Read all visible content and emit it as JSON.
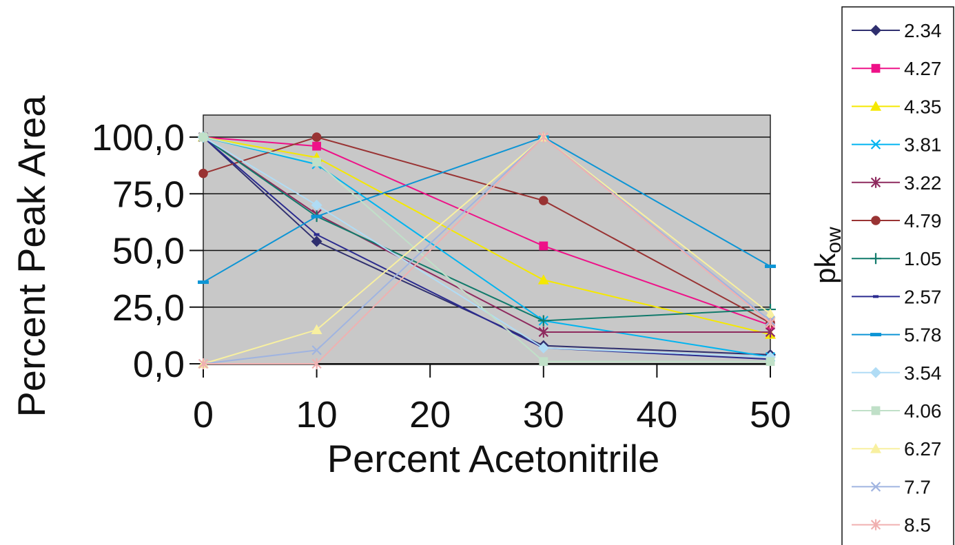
{
  "chart_data": {
    "type": "line",
    "xlabel": "Percent Acetonitrile",
    "ylabel": "Percent Peak Area",
    "legend_title": {
      "main": "pk",
      "sub": "ow"
    },
    "legend_position": "right",
    "grid": "horizontal",
    "plot_background": "#c8c8c8",
    "xlim": [
      0,
      50
    ],
    "ylim": [
      0,
      100
    ],
    "x_ticks": [
      {
        "value": 0,
        "label": "0"
      },
      {
        "value": 10,
        "label": "10"
      },
      {
        "value": 20,
        "label": "20"
      },
      {
        "value": 30,
        "label": "30"
      },
      {
        "value": 40,
        "label": "40"
      },
      {
        "value": 50,
        "label": "50"
      }
    ],
    "y_ticks": [
      {
        "value": 0,
        "label": "0,0"
      },
      {
        "value": 25,
        "label": "25,0"
      },
      {
        "value": 50,
        "label": "50,0"
      },
      {
        "value": 75,
        "label": "75,0"
      },
      {
        "value": 100,
        "label": "100,0"
      }
    ],
    "x": [
      0,
      10,
      30,
      50
    ],
    "series": [
      {
        "name": "2.34",
        "color": "#2f2f6f",
        "marker": "diamond",
        "values": [
          100,
          54,
          8,
          4
        ]
      },
      {
        "name": "4.27",
        "color": "#ee1188",
        "marker": "square",
        "values": [
          100,
          96,
          52,
          17
        ]
      },
      {
        "name": "4.35",
        "color": "#f5e800",
        "marker": "triangle",
        "values": [
          100,
          91,
          37,
          13
        ]
      },
      {
        "name": "3.81",
        "color": "#00b4f0",
        "marker": "x",
        "values": [
          100,
          88,
          19,
          3
        ]
      },
      {
        "name": "3.22",
        "color": "#8e2a5e",
        "marker": "star",
        "values": [
          100,
          66,
          14,
          14
        ]
      },
      {
        "name": "4.79",
        "color": "#993333",
        "marker": "circle",
        "values": [
          84,
          100,
          72,
          18
        ]
      },
      {
        "name": "1.05",
        "color": "#117a6b",
        "marker": "plus",
        "values": [
          100,
          65,
          19,
          24
        ]
      },
      {
        "name": "2.57",
        "color": "#2b2b8f",
        "marker": "dash",
        "values": [
          100,
          57,
          7,
          2
        ]
      },
      {
        "name": "5.78",
        "color": "#0d95d5",
        "marker": "hbar",
        "values": [
          36,
          65,
          100,
          43
        ]
      },
      {
        "name": "3.54",
        "color": "#b0dcf5",
        "marker": "diamond",
        "values": [
          100,
          70,
          7,
          3
        ]
      },
      {
        "name": "4.06",
        "color": "#c0e0c8",
        "marker": "square",
        "values": [
          100,
          89,
          1,
          1
        ]
      },
      {
        "name": "6.27",
        "color": "#f8f0a0",
        "marker": "triangle",
        "values": [
          0,
          15,
          100,
          22
        ]
      },
      {
        "name": "7.7",
        "color": "#a0b4e0",
        "marker": "x",
        "values": [
          0,
          6,
          100,
          19
        ]
      },
      {
        "name": "8.5",
        "color": "#f0b0b0",
        "marker": "star",
        "values": [
          0,
          0,
          100,
          18
        ]
      }
    ]
  }
}
